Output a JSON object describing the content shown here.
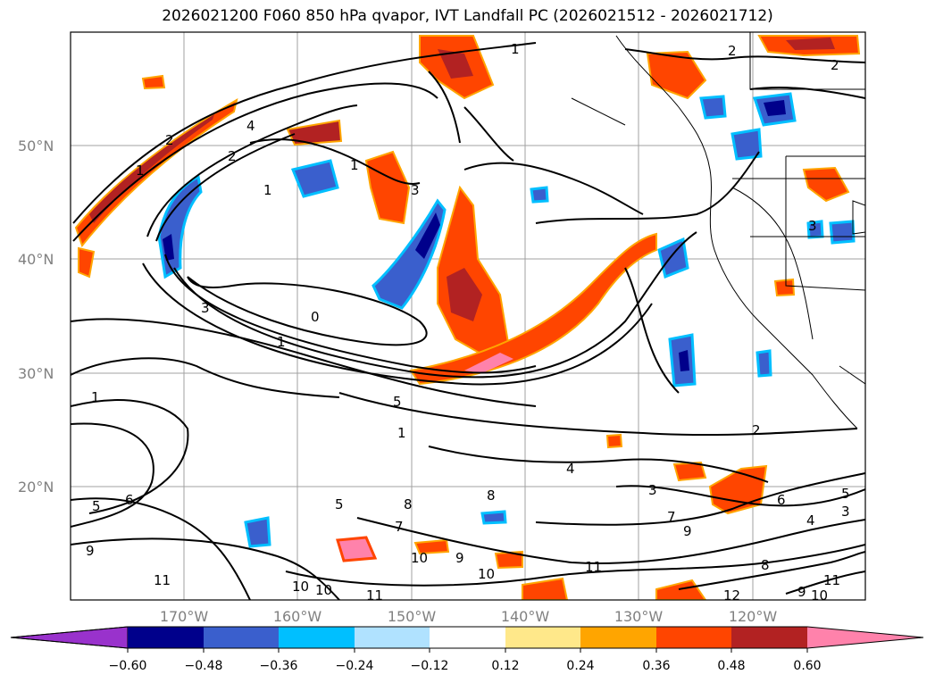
{
  "title": "2026021200 F060 850 hPa qvapor, IVT Landfall PC (2026021512 - 2026021712)",
  "map": {
    "lat_labels": [
      "50°N",
      "40°N",
      "30°N",
      "20°N"
    ],
    "lon_labels": [
      "170°W",
      "160°W",
      "150°W",
      "140°W",
      "130°W",
      "120°W"
    ],
    "contour_labels": [
      "1",
      "2",
      "4",
      "1",
      "2",
      "1",
      "3",
      "3",
      "1",
      "1",
      "2",
      "2",
      "0",
      "1",
      "3",
      "5",
      "2",
      "3",
      "6",
      "5",
      "4",
      "3",
      "7",
      "9",
      "8",
      "8",
      "7",
      "10",
      "9",
      "10",
      "11",
      "10",
      "10",
      "11",
      "12",
      "11",
      "9",
      "10",
      "8",
      "11",
      "6",
      "5",
      "5",
      "9",
      "1",
      "4"
    ]
  },
  "colorbar": {
    "ticks": [
      "−0.60",
      "−0.48",
      "−0.36",
      "−0.24",
      "−0.12",
      "0.12",
      "0.24",
      "0.36",
      "0.48",
      "0.60"
    ],
    "colors": [
      "#9932cc",
      "#00008b",
      "#3a5fcd",
      "#00bfff",
      "#b0e2ff",
      "#ffffff",
      "#ffe88a",
      "#ffa500",
      "#ff4500",
      "#b22222",
      "#ff82ab"
    ]
  }
}
